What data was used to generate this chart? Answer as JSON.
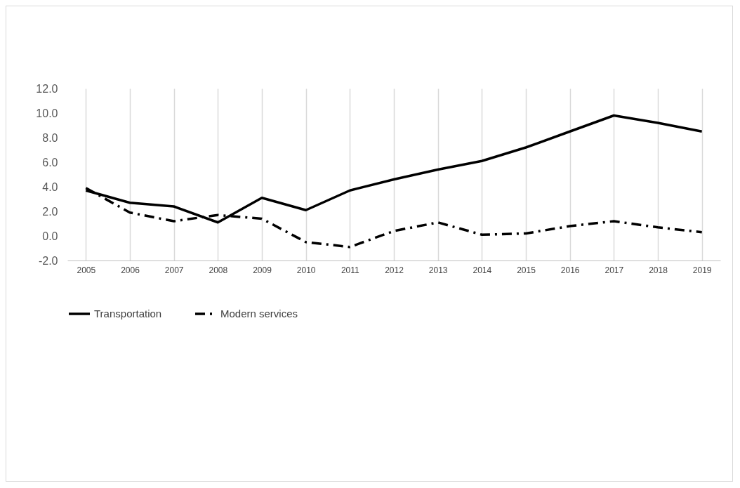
{
  "chart_data": {
    "type": "line",
    "categories": [
      "2005",
      "2006",
      "2007",
      "2008",
      "2009",
      "2010",
      "2011",
      "2012",
      "2013",
      "2014",
      "2015",
      "2016",
      "2017",
      "2018",
      "2019"
    ],
    "series": [
      {
        "name": "Transportation",
        "color": "#000000",
        "line_style": "solid",
        "values": [
          3.7,
          2.7,
          2.4,
          1.1,
          3.1,
          2.1,
          3.7,
          4.6,
          5.4,
          6.1,
          7.2,
          8.5,
          9.8,
          9.2,
          8.5
        ]
      },
      {
        "name": "Modern services",
        "color": "#000000",
        "line_style": "dashed",
        "values": [
          3.9,
          1.9,
          1.2,
          1.7,
          1.4,
          -0.5,
          -0.9,
          0.4,
          1.1,
          0.1,
          0.2,
          0.8,
          1.2,
          0.7,
          0.3
        ]
      }
    ],
    "ylim": [
      -2,
      12
    ],
    "yticks": [
      {
        "value": -2,
        "label": "-2.0"
      },
      {
        "value": 0,
        "label": "0.0"
      },
      {
        "value": 2,
        "label": "2.0"
      },
      {
        "value": 4,
        "label": "4.0"
      },
      {
        "value": 6,
        "label": "6.0"
      },
      {
        "value": 8,
        "label": "8.0"
      },
      {
        "value": 10,
        "label": "10.0"
      },
      {
        "value": 12,
        "label": "12.0"
      }
    ],
    "grid": "x",
    "legend": "bottom",
    "marker": "none"
  }
}
